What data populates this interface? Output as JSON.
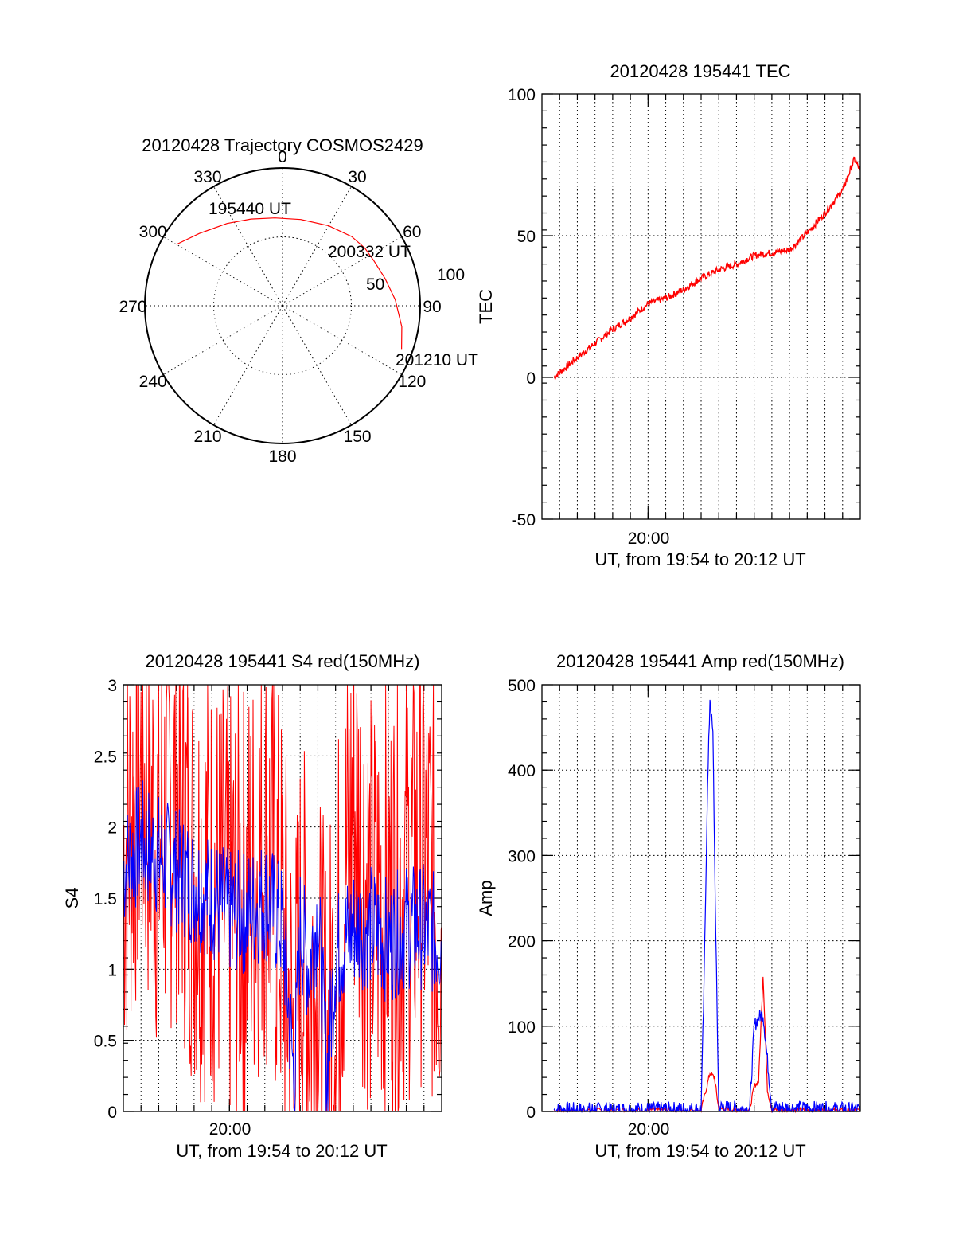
{
  "colors": {
    "red_series": "#ff0000",
    "blue_series": "#0000ff",
    "axes": "#000000"
  },
  "chart_data": [
    {
      "type": "polar",
      "title": "20120428 Trajectory COSMOS2429",
      "azimuth_labels": [
        "0",
        "30",
        "60",
        "90",
        "120",
        "150",
        "180",
        "210",
        "240",
        "270",
        "300",
        "330"
      ],
      "radius_labels": [
        "50",
        "100"
      ],
      "radius_max": 100,
      "grid": true,
      "trajectory_color": "#ff0000",
      "trajectory": [
        {
          "az": 300,
          "zen": 89
        },
        {
          "az": 311,
          "zen": 80
        },
        {
          "az": 326,
          "zen": 72
        },
        {
          "az": 340,
          "zen": 67
        },
        {
          "az": 355,
          "zen": 64
        },
        {
          "az": 12,
          "zen": 64
        },
        {
          "az": 30,
          "zen": 67
        },
        {
          "az": 45,
          "zen": 71
        },
        {
          "az": 55,
          "zen": 73
        },
        {
          "az": 64,
          "zen": 74
        },
        {
          "az": 75,
          "zen": 77
        },
        {
          "az": 87,
          "zen": 82
        },
        {
          "az": 100,
          "zen": 88
        },
        {
          "az": 110,
          "zen": 92
        }
      ],
      "annotations": [
        "195440 UT",
        "200332 UT",
        "201210 UT"
      ]
    },
    {
      "type": "line",
      "title": "20120428 195441 TEC",
      "xlabel": "UT, from 19:54 to 20:12 UT",
      "ylabel": "TEC",
      "x_tick_labels": [
        "20:00"
      ],
      "y_tick_labels": [
        "-50",
        "0",
        "50",
        "100"
      ],
      "xlim": [
        "19:54",
        "20:12"
      ],
      "ylim": [
        -50,
        100
      ],
      "grid": true,
      "series": [
        {
          "color": "#ff0000",
          "x": [
            "19:54:41",
            "19:56:00",
            "19:57:00",
            "19:58:00",
            "19:59:00",
            "20:00:00",
            "20:01:00",
            "20:02:00",
            "20:03:00",
            "20:04:00",
            "20:05:00",
            "20:06:00",
            "20:07:00",
            "20:08:00",
            "20:09:00",
            "20:10:00",
            "20:11:00",
            "20:11:40",
            "20:12:00"
          ],
          "values": [
            0,
            7,
            12,
            17,
            21,
            26,
            28,
            31,
            35,
            38,
            40,
            43,
            44,
            45,
            51,
            58,
            66,
            77,
            73
          ]
        }
      ]
    },
    {
      "type": "line",
      "title": "20120428 195441 S4 red(150MHz)",
      "xlabel": "UT, from 19:54 to 20:12 UT",
      "ylabel": "S4",
      "x_tick_labels": [
        "20:00"
      ],
      "y_tick_labels": [
        "0",
        "0.5",
        "1",
        "1.5",
        "2",
        "2.5",
        "3"
      ],
      "xlim": [
        "19:54",
        "20:12"
      ],
      "ylim": [
        0,
        3
      ],
      "grid": true,
      "series": [
        {
          "color": "#ff0000",
          "x": [
            "19:54:00",
            "19:55:00",
            "19:56:00",
            "19:57:00",
            "19:58:00",
            "19:59:00",
            "20:00:00",
            "20:01:00",
            "20:02:00",
            "20:03:00",
            "20:03:40",
            "20:04:00",
            "20:04:30",
            "20:05:00",
            "20:05:30",
            "20:06:00",
            "20:06:30",
            "20:07:00",
            "20:08:00",
            "20:09:00",
            "20:10:00",
            "20:11:00",
            "20:12:00"
          ],
          "values": [
            1.8,
            2.4,
            1.9,
            2.2,
            1.7,
            1.6,
            1.4,
            1.5,
            1.9,
            1.3,
            0.35,
            1.1,
            0.9,
            0.8,
            0.3,
            1.0,
            1.6,
            2.2,
            1.4,
            1.5,
            1.6,
            1.8,
            1.3
          ],
          "note_style": "heavily clipped vertical spikes between 0 and 3"
        },
        {
          "color": "#0000ff",
          "x": [
            "19:54:00",
            "19:55:00",
            "19:56:00",
            "19:57:00",
            "19:58:00",
            "19:59:00",
            "20:00:00",
            "20:01:00",
            "20:02:00",
            "20:03:00",
            "20:03:40",
            "20:04:00",
            "20:04:30",
            "20:05:00",
            "20:05:30",
            "20:06:00",
            "20:06:30",
            "20:07:00",
            "20:08:00",
            "20:09:00",
            "20:10:00",
            "20:11:00",
            "20:12:00"
          ],
          "values": [
            1.7,
            1.9,
            1.8,
            1.7,
            1.6,
            1.5,
            1.4,
            1.4,
            1.5,
            1.3,
            0.2,
            1.3,
            1.0,
            1.4,
            0.25,
            1.1,
            1.2,
            1.3,
            1.3,
            1.2,
            1.3,
            1.3,
            1.2
          ]
        }
      ]
    },
    {
      "type": "line",
      "title": "20120428 195441 Amp red(150MHz)",
      "xlabel": "UT, from 19:54 to 20:12 UT",
      "ylabel": "Amp",
      "x_tick_labels": [
        "20:00"
      ],
      "y_tick_labels": [
        "0",
        "100",
        "200",
        "300",
        "400",
        "500"
      ],
      "xlim": [
        "19:54",
        "20:12"
      ],
      "ylim": [
        0,
        500
      ],
      "grid": true,
      "series": [
        {
          "color": "#ff0000",
          "x": [
            "19:54:41",
            "20:03:00",
            "20:03:20",
            "20:03:30",
            "20:03:45",
            "20:04:00",
            "20:05:45",
            "20:06:00",
            "20:06:15",
            "20:06:30",
            "20:06:45",
            "20:07:00",
            "20:12:00"
          ],
          "values": [
            1,
            2,
            30,
            45,
            40,
            3,
            2,
            30,
            35,
            160,
            25,
            2,
            1
          ]
        },
        {
          "color": "#0000ff",
          "x": [
            "19:54:41",
            "20:03:00",
            "20:03:10",
            "20:03:20",
            "20:03:30",
            "20:03:40",
            "20:03:50",
            "20:04:00",
            "20:05:45",
            "20:06:00",
            "20:06:15",
            "20:06:30",
            "20:06:45",
            "20:07:00",
            "20:12:00"
          ],
          "values": [
            2,
            3,
            150,
            350,
            485,
            440,
            200,
            5,
            3,
            100,
            110,
            115,
            60,
            5,
            2
          ]
        }
      ]
    }
  ]
}
